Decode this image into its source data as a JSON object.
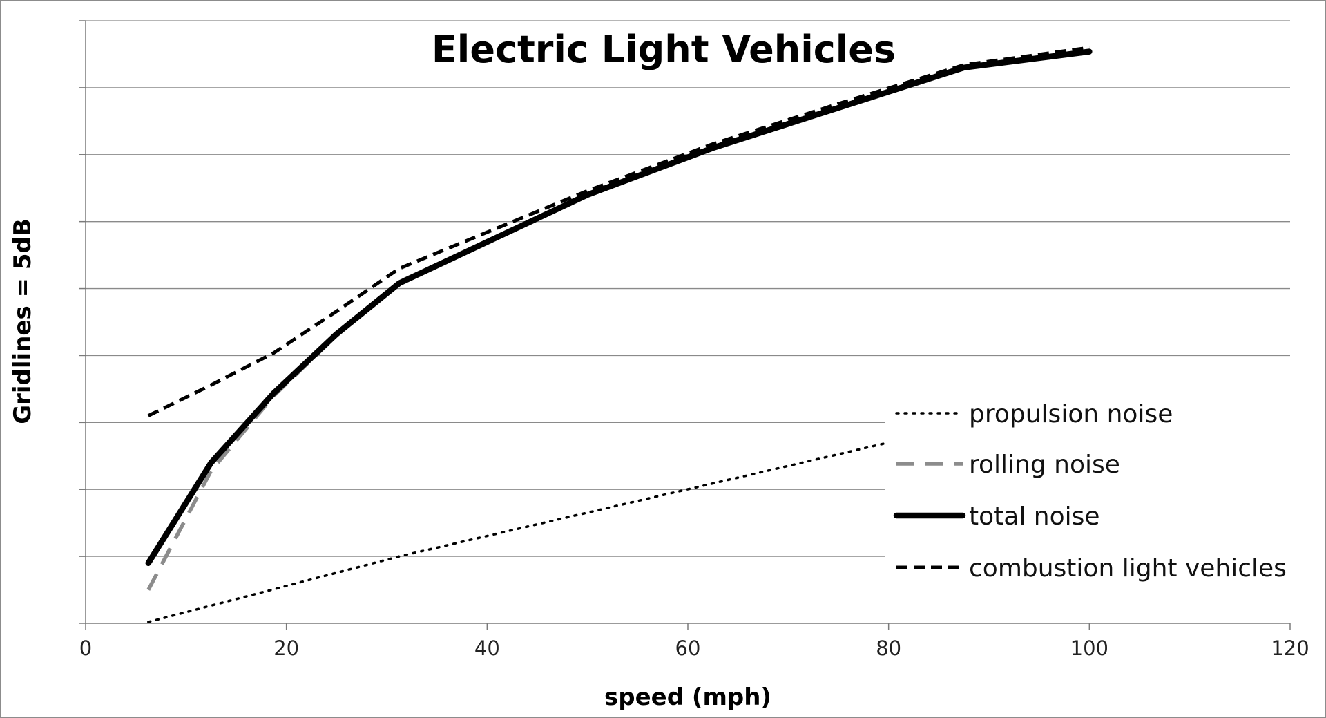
{
  "chart_data": {
    "type": "line",
    "title": "Electric Light Vehicles",
    "xlabel": "speed (mph)",
    "ylabel": "Gridlines = 5dB",
    "xlim": [
      0,
      120
    ],
    "x_ticks": [
      0,
      20,
      40,
      60,
      80,
      100,
      120
    ],
    "ylim": [
      0,
      45
    ],
    "y_grid_step": 5,
    "y_tick_labels_shown": false,
    "grid": true,
    "legend_position": "bottom-right",
    "series": [
      {
        "name": "propulsion noise",
        "style": "dotted",
        "color": "#000000",
        "points": [
          [
            6.25,
            0.1
          ],
          [
            31.25,
            5
          ],
          [
            80,
            13.5
          ]
        ]
      },
      {
        "name": "rolling noise",
        "style": "long-dash",
        "color": "#8c8c8c",
        "points": [
          [
            6.25,
            2.5
          ],
          [
            12.5,
            11.4
          ],
          [
            18.75,
            17
          ],
          [
            25,
            21.5
          ],
          [
            31.25,
            25.5
          ],
          [
            50,
            32
          ],
          [
            62.5,
            35.5
          ],
          [
            75,
            38.5
          ],
          [
            87.5,
            41.5
          ],
          [
            100,
            42.7
          ]
        ]
      },
      {
        "name": "total noise",
        "style": "solid",
        "color": "#000000",
        "points": [
          [
            6.25,
            4.5
          ],
          [
            12.5,
            12
          ],
          [
            18.75,
            17.2
          ],
          [
            25,
            21.6
          ],
          [
            31.25,
            25.4
          ],
          [
            50,
            32
          ],
          [
            62.5,
            35.5
          ],
          [
            75,
            38.5
          ],
          [
            87.5,
            41.5
          ],
          [
            100,
            42.7
          ]
        ]
      },
      {
        "name": "combustion light vehicles",
        "style": "dashed",
        "color": "#000000",
        "points": [
          [
            6.25,
            15.5
          ],
          [
            12.5,
            17.8
          ],
          [
            18.75,
            20.2
          ],
          [
            25,
            23.3
          ],
          [
            31.25,
            26.5
          ],
          [
            50,
            32.3
          ],
          [
            62.5,
            35.8
          ],
          [
            75,
            38.8
          ],
          [
            87.5,
            41.7
          ],
          [
            100,
            43
          ]
        ]
      }
    ]
  }
}
